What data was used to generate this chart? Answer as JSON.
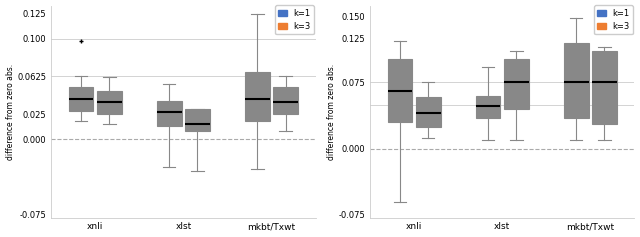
{
  "left_plot": {
    "groups": [
      "xnli",
      "xlst",
      "mkbt/Txwt"
    ],
    "k1": {
      "xnli": {
        "q1": 0.028,
        "median": 0.04,
        "q3": 0.052,
        "whislo": 0.018,
        "whishi": 0.063,
        "fliers": [
          0.098
        ]
      },
      "xlst": {
        "q1": 0.013,
        "median": 0.027,
        "q3": 0.038,
        "whislo": -0.028,
        "whishi": 0.055,
        "fliers": []
      },
      "mkbt/Txwt": {
        "q1": 0.018,
        "median": 0.04,
        "q3": 0.067,
        "whislo": -0.03,
        "whishi": 0.125,
        "fliers": []
      }
    },
    "k3": {
      "xnli": {
        "q1": 0.025,
        "median": 0.037,
        "q3": 0.048,
        "whislo": 0.015,
        "whishi": 0.062,
        "fliers": []
      },
      "xlst": {
        "q1": 0.008,
        "median": 0.015,
        "q3": 0.03,
        "whislo": -0.032,
        "whishi": 0.03,
        "fliers": []
      },
      "mkbt/Txwt": {
        "q1": 0.025,
        "median": 0.037,
        "q3": 0.052,
        "whislo": 0.008,
        "whishi": 0.063,
        "fliers": []
      }
    },
    "ylim": [
      -0.078,
      0.133
    ],
    "ytick_vals": [
      0.125,
      0.1,
      0.0625,
      0.025,
      0.0,
      -0.075
    ],
    "ytick_labels": [
      "0.125",
      "0.100",
      "0.0625",
      "0.025",
      "0.000",
      "-0.075"
    ],
    "ylabel": "difference from zero abs.",
    "zero_line": 0.0,
    "hlines": [
      0.1,
      0.0625
    ]
  },
  "right_plot": {
    "groups": [
      "xnli",
      "xlst",
      "mkbt/Txwt"
    ],
    "k1": {
      "xnli": {
        "q1": 0.03,
        "median": 0.065,
        "q3": 0.102,
        "whislo": -0.06,
        "whishi": 0.122,
        "fliers": []
      },
      "xlst": {
        "q1": 0.035,
        "median": 0.048,
        "q3": 0.06,
        "whislo": 0.01,
        "whishi": 0.092,
        "fliers": []
      },
      "mkbt/Txwt": {
        "q1": 0.035,
        "median": 0.075,
        "q3": 0.12,
        "whislo": 0.01,
        "whishi": 0.148,
        "fliers": []
      }
    },
    "k3": {
      "xnli": {
        "q1": 0.025,
        "median": 0.04,
        "q3": 0.058,
        "whislo": 0.012,
        "whishi": 0.075,
        "fliers": []
      },
      "xlst": {
        "q1": 0.045,
        "median": 0.075,
        "q3": 0.102,
        "whislo": 0.01,
        "whishi": 0.11,
        "fliers": []
      },
      "mkbt/Txwt": {
        "q1": 0.028,
        "median": 0.075,
        "q3": 0.11,
        "whislo": 0.01,
        "whishi": 0.115,
        "fliers": []
      }
    },
    "ylim": [
      -0.078,
      0.162
    ],
    "ytick_vals": [
      0.15,
      0.125,
      0.075,
      0.0,
      -0.075
    ],
    "ytick_labels": [
      "0.150",
      "0.125",
      "0.075",
      "0.000",
      "-0.075"
    ],
    "ylabel": "difference from zero abs.",
    "zero_line": 0.0,
    "hlines": [
      0.075,
      0.05
    ]
  },
  "color_k1": "#4472C4",
  "color_k3": "#ED7D31",
  "legend_k1": "k=1",
  "legend_k3": "k=3",
  "box_width": 0.28,
  "offsets": [
    -0.16,
    0.16
  ],
  "figsize": [
    6.4,
    2.37
  ],
  "dpi": 100
}
